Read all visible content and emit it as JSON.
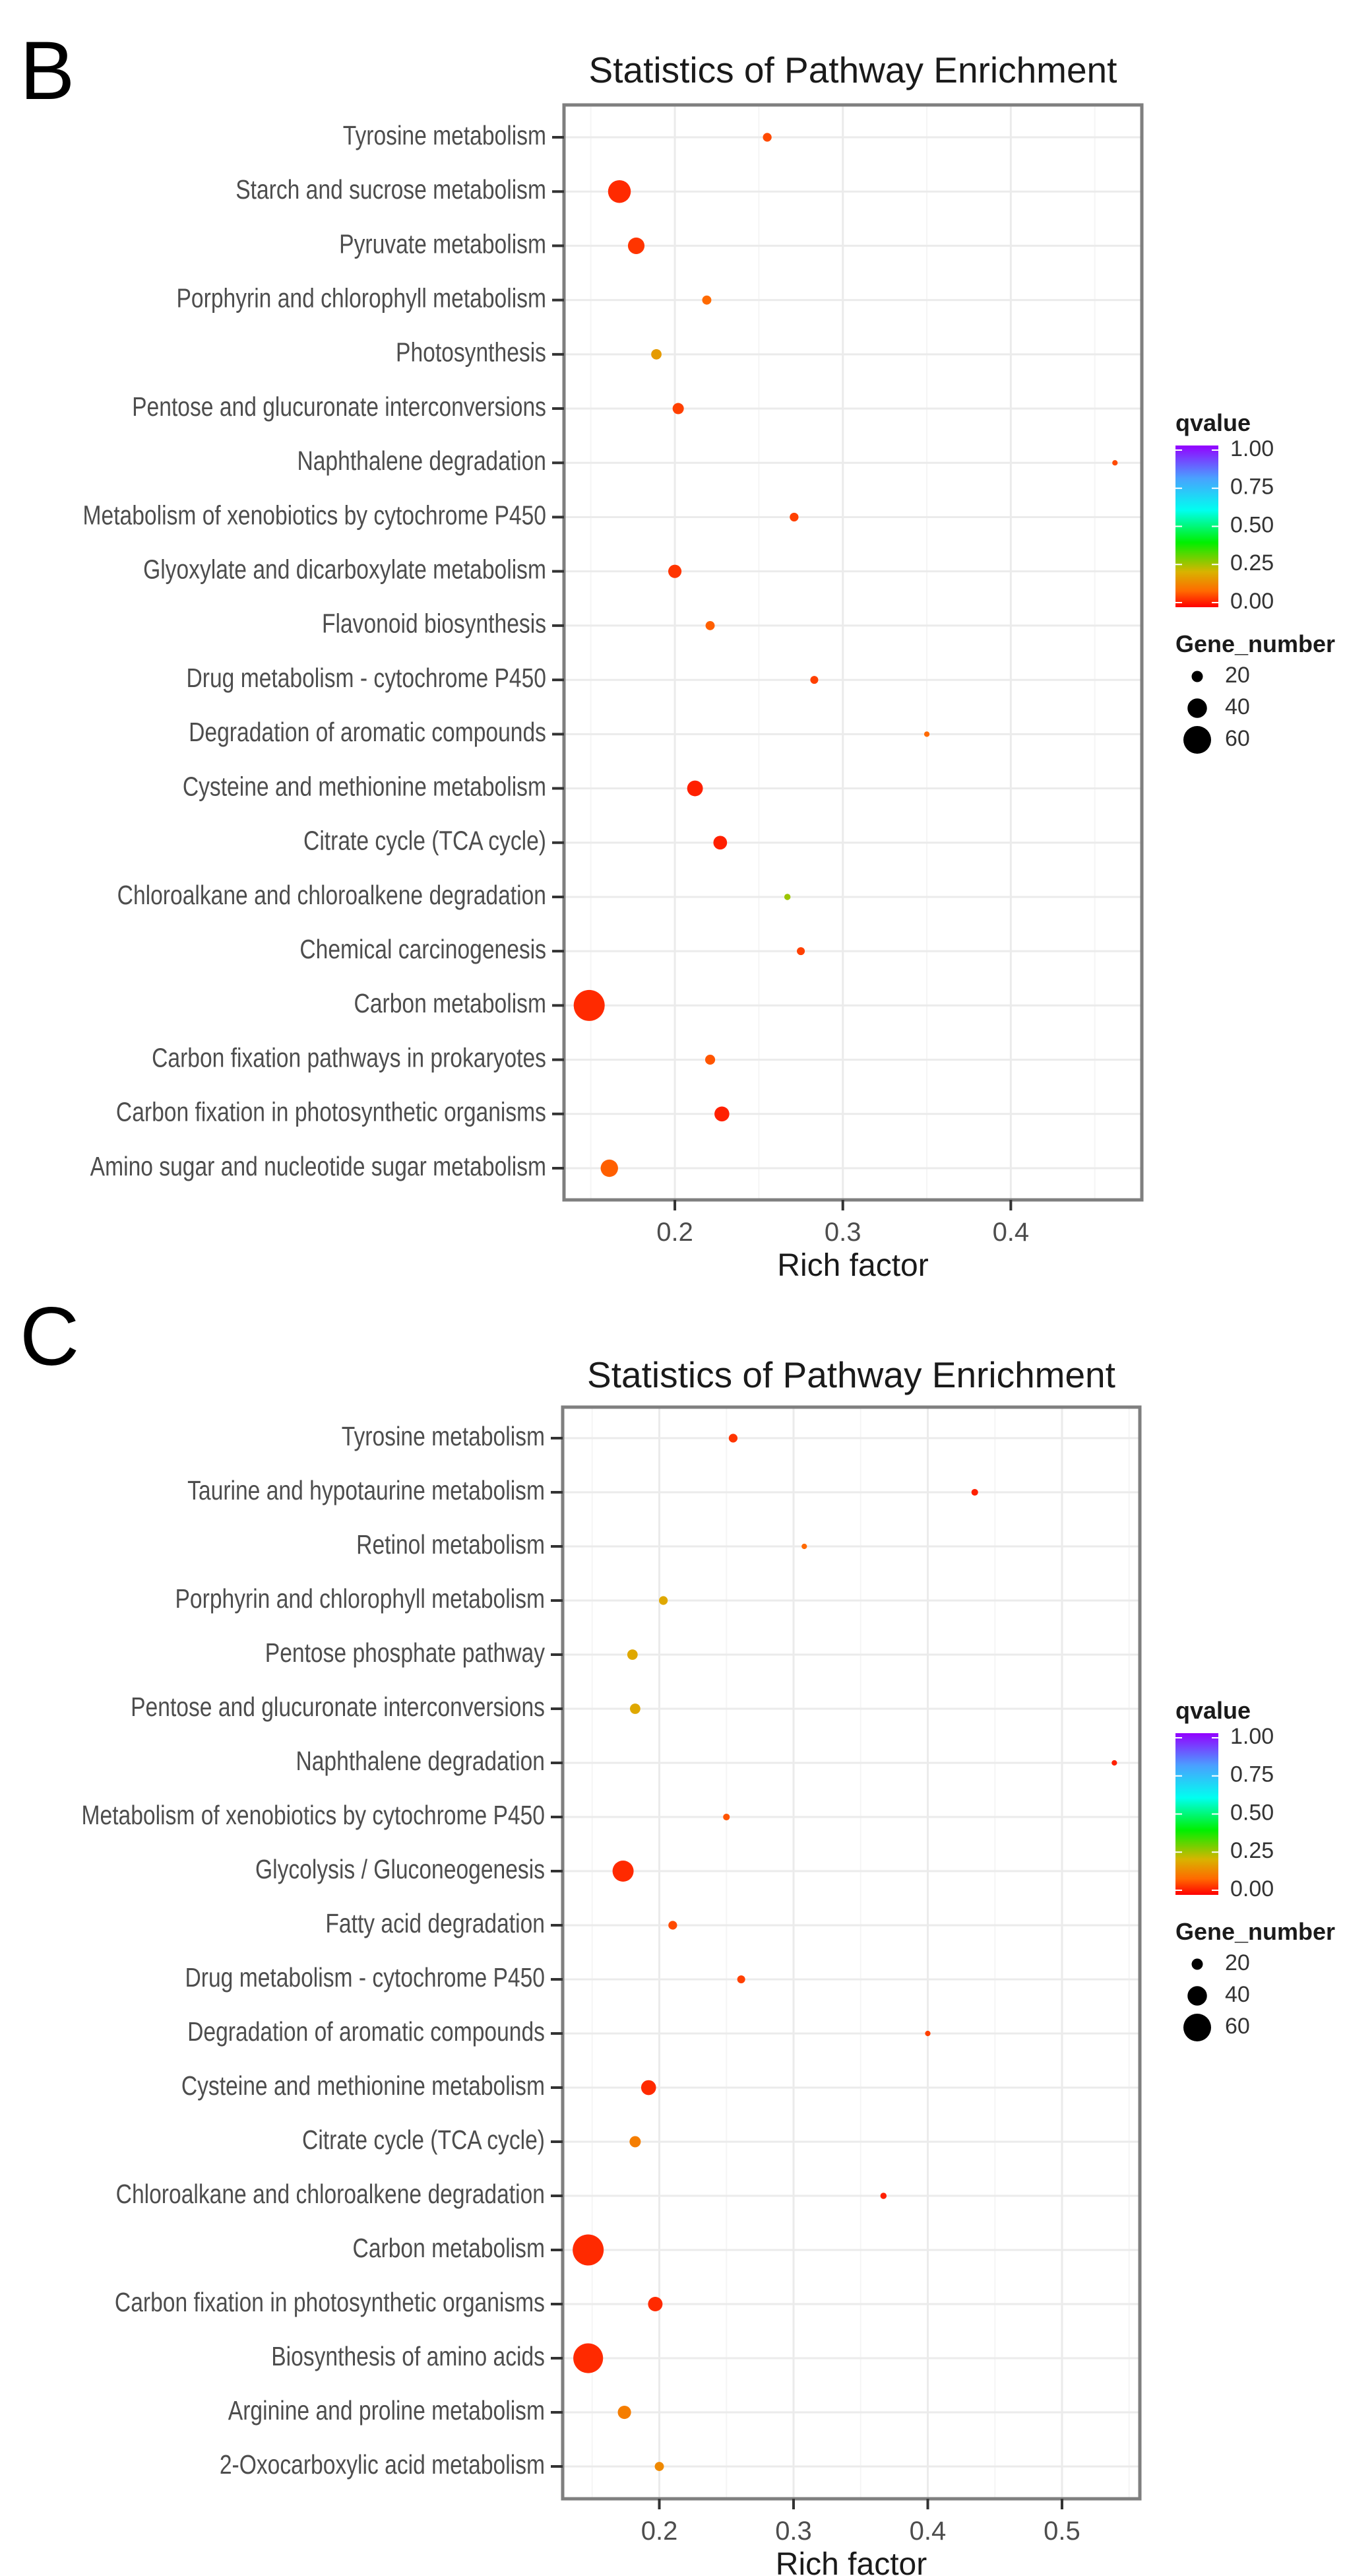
{
  "chart_data": [
    {
      "panel": "B",
      "type": "scatter",
      "title": "Statistics of Pathway Enrichment",
      "xlabel": "Rich factor",
      "ylabel": "",
      "xlim": [
        0.134,
        0.478
      ],
      "xticks": [
        0.2,
        0.3,
        0.4
      ],
      "xtick_labels": [
        "0.2",
        "0.3",
        "0.4"
      ],
      "grid": true,
      "legend_position": "right",
      "color_legend": {
        "title": "qvalue",
        "ticks": [
          "1.00",
          "0.75",
          "0.50",
          "0.25",
          "0.00"
        ]
      },
      "size_legend": {
        "title": "Gene_number",
        "values": [
          20,
          40,
          60
        ],
        "labels": [
          "20",
          "40",
          "60"
        ]
      },
      "categories": [
        "Tyrosine metabolism",
        "Starch and sucrose metabolism",
        "Pyruvate metabolism",
        "Porphyrin and chlorophyll metabolism",
        "Photosynthesis",
        "Pentose and glucuronate interconversions",
        "Naphthalene degradation",
        "Metabolism of xenobiotics by cytochrome P450",
        "Glyoxylate and dicarboxylate metabolism",
        "Flavonoid biosynthesis",
        "Drug metabolism - cytochrome P450",
        "Degradation of aromatic compounds",
        "Cysteine and methionine metabolism",
        "Citrate cycle (TCA cycle)",
        "Chloroalkane and chloroalkene degradation",
        "Chemical carcinogenesis",
        "Carbon metabolism",
        "Carbon fixation pathways in prokaryotes",
        "Carbon fixation in photosynthetic organisms",
        "Amino sugar and nucleotide sugar metabolism"
      ],
      "rich_factor": [
        0.255,
        0.167,
        0.177,
        0.219,
        0.189,
        0.202,
        0.462,
        0.271,
        0.2,
        0.221,
        0.283,
        0.35,
        0.212,
        0.227,
        0.267,
        0.275,
        0.149,
        0.221,
        0.228,
        0.161
      ],
      "gene_number": [
        14,
        48,
        33,
        15,
        18,
        20,
        6,
        14,
        25,
        15,
        12,
        6,
        31,
        26,
        8,
        12,
        68,
        17,
        29,
        35
      ],
      "qvalue": [
        0.07,
        0.04,
        0.05,
        0.1,
        0.18,
        0.06,
        0.07,
        0.06,
        0.05,
        0.09,
        0.06,
        0.1,
        0.03,
        0.03,
        0.27,
        0.06,
        0.04,
        0.08,
        0.03,
        0.09
      ]
    },
    {
      "panel": "C",
      "type": "scatter",
      "title": "Statistics of Pathway Enrichment",
      "xlabel": "Rich factor",
      "ylabel": "",
      "xlim": [
        0.128,
        0.558
      ],
      "xticks": [
        0.2,
        0.3,
        0.4,
        0.5
      ],
      "xtick_labels": [
        "0.2",
        "0.3",
        "0.4",
        "0.5"
      ],
      "grid": true,
      "legend_position": "right",
      "color_legend": {
        "title": "qvalue",
        "ticks": [
          "1.00",
          "0.75",
          "0.50",
          "0.25",
          "0.00"
        ]
      },
      "size_legend": {
        "title": "Gene_number",
        "values": [
          20,
          40,
          60
        ],
        "labels": [
          "20",
          "40",
          "60"
        ]
      },
      "categories": [
        "Tyrosine metabolism",
        "Taurine and hypotaurine metabolism",
        "Retinol metabolism",
        "Porphyrin and chlorophyll metabolism",
        "Pentose phosphate pathway",
        "Pentose and glucuronate interconversions",
        "Naphthalene degradation",
        "Metabolism of xenobiotics by cytochrome P450",
        "Glycolysis / Gluconeogenesis",
        "Fatty acid degradation",
        "Drug metabolism - cytochrome P450",
        "Degradation of aromatic compounds",
        "Cysteine and methionine metabolism",
        "Citrate cycle (TCA cycle)",
        "Chloroalkane and chloroalkene degradation",
        "Carbon metabolism",
        "Carbon fixation in photosynthetic organisms",
        "Biosynthesis of amino acids",
        "Arginine and proline metabolism",
        "2-Oxocarboxylic acid metabolism"
      ],
      "rich_factor": [
        0.255,
        0.435,
        0.308,
        0.203,
        0.18,
        0.182,
        0.539,
        0.25,
        0.173,
        0.21,
        0.261,
        0.4,
        0.192,
        0.182,
        0.367,
        0.147,
        0.197,
        0.147,
        0.174,
        0.2
      ],
      "gene_number": [
        14,
        9,
        6,
        14,
        18,
        18,
        6,
        9,
        44,
        14,
        12,
        6,
        29,
        20,
        8,
        68,
        28,
        65,
        25,
        15
      ],
      "qvalue": [
        0.05,
        0.03,
        0.1,
        0.2,
        0.2,
        0.2,
        0.03,
        0.08,
        0.04,
        0.07,
        0.06,
        0.06,
        0.04,
        0.13,
        0.03,
        0.04,
        0.04,
        0.04,
        0.13,
        0.15
      ]
    }
  ]
}
